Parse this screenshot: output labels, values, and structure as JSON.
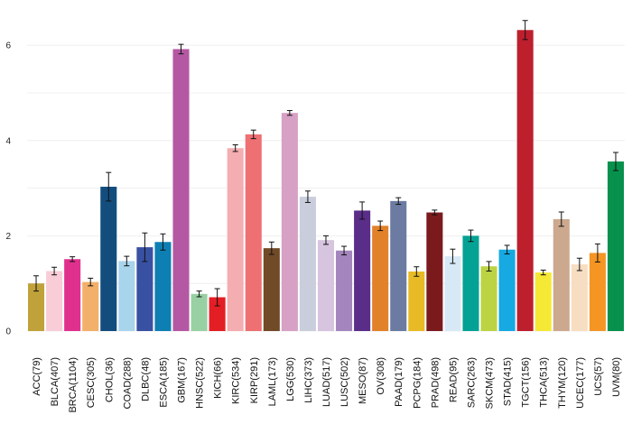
{
  "chart_data": {
    "type": "bar",
    "title": "",
    "xlabel": "",
    "ylabel": "",
    "ylim": [
      0,
      6.6
    ],
    "yticks": [
      "0",
      "2",
      "4",
      "6"
    ],
    "grid": true,
    "legend": "none",
    "error_bars": true,
    "categories": [
      "ACC(79)",
      "BLCA(407)",
      "BRCA(1104)",
      "CESC(305)",
      "CHOL(36)",
      "COAD(288)",
      "DLBC(48)",
      "ESCA(185)",
      "GBM(167)",
      "HNSC(522)",
      "KICH(66)",
      "KIRC(534)",
      "KIRP(291)",
      "LAML(173)",
      "LGG(530)",
      "LIHC(373)",
      "LUAD(517)",
      "LUSC(502)",
      "MESO(87)",
      "OV(308)",
      "PAAD(179)",
      "PCPG(184)",
      "PRAD(498)",
      "READ(95)",
      "SARC(263)",
      "SKCM(473)",
      "STAD(415)",
      "TGCT(156)",
      "THCA(513)",
      "THYM(120)",
      "UCEC(177)",
      "UCS(57)",
      "UVM(80)"
    ],
    "values": [
      1.0,
      1.26,
      1.51,
      1.03,
      3.03,
      1.47,
      1.76,
      1.87,
      5.92,
      0.78,
      0.71,
      3.84,
      4.13,
      1.74,
      4.58,
      2.82,
      1.91,
      1.69,
      2.53,
      2.21,
      2.73,
      1.25,
      2.49,
      1.57,
      2.0,
      1.36,
      1.71,
      6.32,
      1.23,
      2.35,
      1.4,
      1.64,
      3.56
    ],
    "errors": [
      0.16,
      0.08,
      0.05,
      0.08,
      0.3,
      0.1,
      0.3,
      0.17,
      0.1,
      0.06,
      0.18,
      0.07,
      0.09,
      0.13,
      0.05,
      0.12,
      0.09,
      0.09,
      0.18,
      0.1,
      0.07,
      0.1,
      0.05,
      0.15,
      0.12,
      0.1,
      0.09,
      0.2,
      0.05,
      0.15,
      0.13,
      0.19,
      0.19
    ],
    "colors": [
      "#c0a23a",
      "#f9cdd8",
      "#e0308e",
      "#f3b06a",
      "#134d7e",
      "#a8d4ec",
      "#3951a2",
      "#0e7fb3",
      "#b558a3",
      "#98d0a3",
      "#e31e24",
      "#f4adb0",
      "#ee7073",
      "#714a28",
      "#d7a0c5",
      "#c9cddc",
      "#d7c4df",
      "#a485bd",
      "#5a2d88",
      "#e1812a",
      "#6c7ba2",
      "#e8bb26",
      "#7a1a1c",
      "#d8e9f6",
      "#04a294",
      "#bcd444",
      "#17a9e1",
      "#bd1f2d",
      "#f5e936",
      "#cca98e",
      "#f7ddc2",
      "#f49524",
      "#07914d"
    ]
  }
}
